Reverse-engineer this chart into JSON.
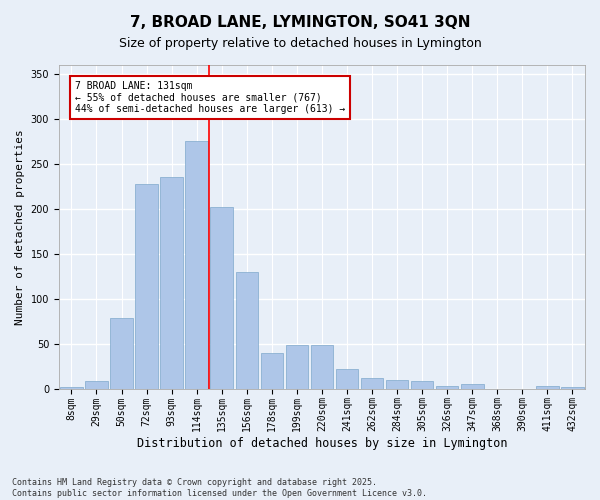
{
  "title": "7, BROAD LANE, LYMINGTON, SO41 3QN",
  "subtitle": "Size of property relative to detached houses in Lymington",
  "xlabel": "Distribution of detached houses by size in Lymington",
  "ylabel": "Number of detached properties",
  "categories": [
    "8sqm",
    "29sqm",
    "50sqm",
    "72sqm",
    "93sqm",
    "114sqm",
    "135sqm",
    "156sqm",
    "178sqm",
    "199sqm",
    "220sqm",
    "241sqm",
    "262sqm",
    "284sqm",
    "305sqm",
    "326sqm",
    "347sqm",
    "368sqm",
    "390sqm",
    "411sqm",
    "432sqm"
  ],
  "values": [
    2,
    8,
    78,
    228,
    235,
    275,
    202,
    130,
    40,
    48,
    48,
    22,
    12,
    10,
    8,
    3,
    5,
    0,
    0,
    3,
    2
  ],
  "bar_color": "#aec6e8",
  "bar_edge_color": "#7fa8cc",
  "background_color": "#e8eff8",
  "grid_color": "#ffffff",
  "red_line_x": 5.5,
  "annotation_text": "7 BROAD LANE: 131sqm\n← 55% of detached houses are smaller (767)\n44% of semi-detached houses are larger (613) →",
  "annotation_box_color": "#cc0000",
  "ylim": [
    0,
    360
  ],
  "yticks": [
    0,
    50,
    100,
    150,
    200,
    250,
    300,
    350
  ],
  "footer": "Contains HM Land Registry data © Crown copyright and database right 2025.\nContains public sector information licensed under the Open Government Licence v3.0.",
  "title_fontsize": 11,
  "subtitle_fontsize": 9,
  "xlabel_fontsize": 8.5,
  "ylabel_fontsize": 8,
  "tick_fontsize": 7,
  "footer_fontsize": 6,
  "ann_fontsize": 7
}
